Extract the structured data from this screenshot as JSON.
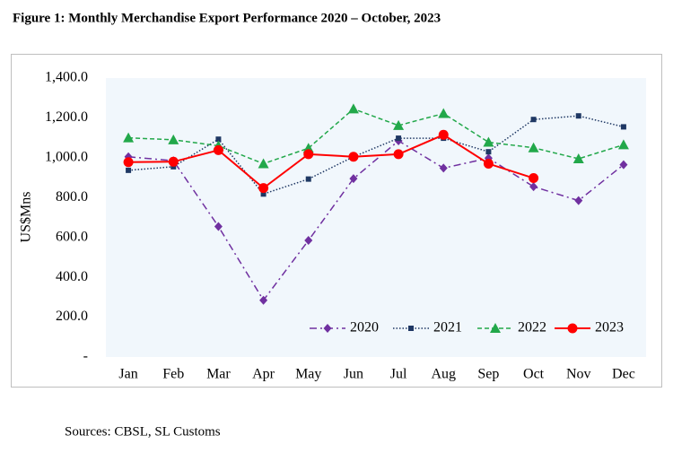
{
  "chart_data": {
    "type": "line",
    "title": "Figure 1: Monthly Merchandise Export Performance 2020 – October, 2023",
    "y_label": "US$Mns",
    "source": "Sources: CBSL, SL Customs",
    "categories": [
      "Jan",
      "Feb",
      "Mar",
      "Apr",
      "May",
      "Jun",
      "Jul",
      "Aug",
      "Sep",
      "Oct",
      "Nov",
      "Dec"
    ],
    "series": [
      {
        "name": "2020",
        "color": "#7030a0",
        "marker": "diamond",
        "linestyle": "dashdot",
        "values": [
          1005,
          985,
          655,
          285,
          585,
          895,
          1085,
          948,
          998,
          855,
          785,
          965
        ]
      },
      {
        "name": "2021",
        "color": "#1f3864",
        "marker": "square",
        "linestyle": "dotted",
        "values": [
          937,
          955,
          1093,
          818,
          893,
          1005,
          1098,
          1098,
          1030,
          1192,
          1210,
          1155
        ]
      },
      {
        "name": "2022",
        "color": "#22a84a",
        "marker": "triangle",
        "linestyle": "dashed",
        "values": [
          1100,
          1090,
          1060,
          970,
          1048,
          1245,
          1162,
          1222,
          1078,
          1050,
          995,
          1065
        ]
      },
      {
        "name": "2023",
        "color": "#ff0000",
        "marker": "circle",
        "linestyle": "solid",
        "values": [
          978,
          980,
          1038,
          848,
          1018,
          1005,
          1018,
          1115,
          970,
          898,
          null,
          null
        ]
      }
    ],
    "ylim": [
      0,
      1400
    ],
    "yticks": [
      {
        "value": 0,
        "label": "-"
      },
      {
        "value": 200,
        "label": "200.0"
      },
      {
        "value": 400,
        "label": "400.0"
      },
      {
        "value": 600,
        "label": "600.0"
      },
      {
        "value": 800,
        "label": "800.0"
      },
      {
        "value": 1000,
        "label": "1,000.0"
      },
      {
        "value": 1200,
        "label": "1,200.0"
      },
      {
        "value": 1400,
        "label": "1,400.0"
      }
    ],
    "legend": "lower right"
  }
}
